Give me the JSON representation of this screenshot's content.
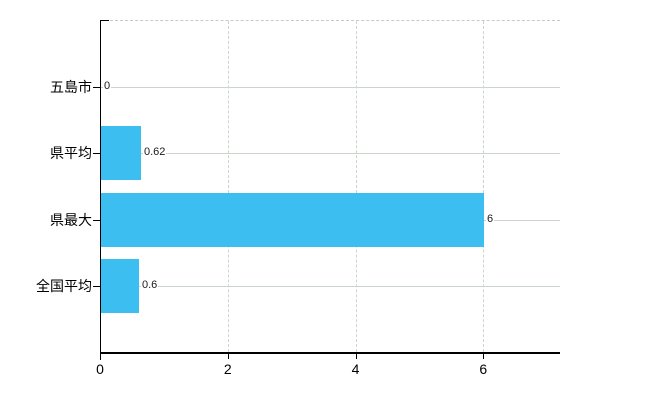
{
  "chart_data": {
    "type": "bar",
    "orientation": "horizontal",
    "title": "",
    "xlabel": "",
    "ylabel": "",
    "categories": [
      "五島市",
      "県平均",
      "県最大",
      "全国平均"
    ],
    "values": [
      0,
      0.62,
      6,
      0.6
    ],
    "value_labels": [
      "0",
      "0.62",
      "6",
      "0.6"
    ],
    "x_ticks": [
      0,
      2,
      4,
      6
    ],
    "x_tick_labels": [
      "0",
      "2",
      "4",
      "6"
    ],
    "xlim": [
      0,
      7.2
    ],
    "legend": "none",
    "grid": true,
    "colors": {
      "bar": "#3CBEF0",
      "grid_line": "#ccd5cc",
      "axis": "#000000",
      "top_border": "#c9c9c9",
      "value_label": "#1a1a1a",
      "background": "#ffffff"
    }
  }
}
